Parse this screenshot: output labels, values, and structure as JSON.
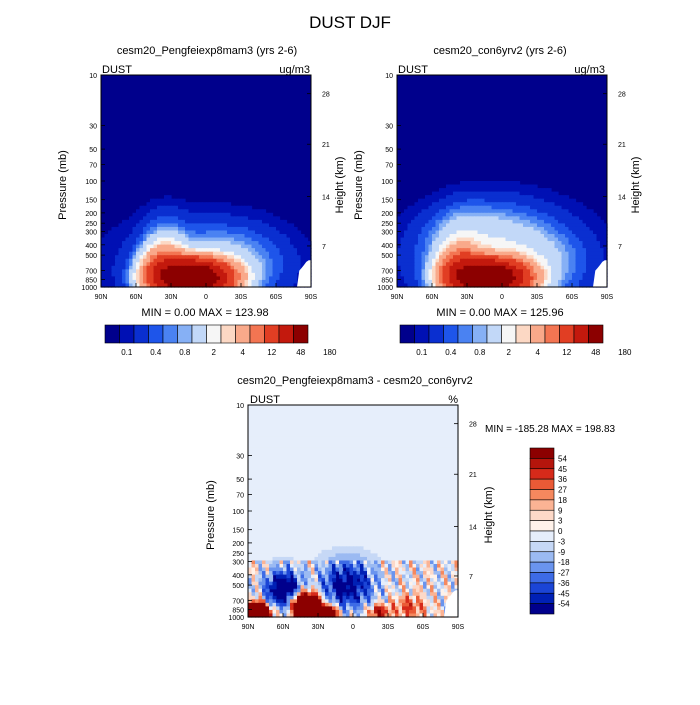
{
  "page": {
    "title": "DUST DJF"
  },
  "panels": [
    {
      "title": "cesm20_Pengfeiexp8mam3 (yrs 2-6)",
      "left_label": "DUST",
      "right_label": "ug/m3",
      "stats": "MIN =   0.00  MAX = 123.98",
      "ylabel": "Pressure (mb)",
      "y2label": "Height (km)"
    },
    {
      "title": "cesm20_con6yrv2 (yrs 2-6)",
      "left_label": "DUST",
      "right_label": "ug/m3",
      "stats": "MIN =   0.00  MAX = 125.96",
      "ylabel": "Pressure (mb)",
      "y2label": "Height (km)"
    },
    {
      "title": "cesm20_Pengfeiexp8mam3 - cesm20_con6yrv2",
      "left_label": "DUST",
      "right_label": "%",
      "stats": "MIN = -185.28  MAX = 198.83",
      "ylabel": "Pressure (mb)",
      "y2label": "Height (km)"
    }
  ],
  "chart_data": [
    {
      "type": "heatmap",
      "panel": 1,
      "x_ticks": [
        "90N",
        "60N",
        "30N",
        "0",
        "30S",
        "60S",
        "90S"
      ],
      "x_range": [
        90,
        -90
      ],
      "y_ticks": [
        "10",
        "30",
        "50",
        "70",
        "100",
        "150",
        "200",
        "250",
        "300",
        "400",
        "500",
        "700",
        "850",
        "1000"
      ],
      "y_range": [
        10,
        1000
      ],
      "y_scale": "log",
      "y2_ticks": [
        "28",
        "21",
        "14",
        "7"
      ],
      "levels": [
        "0.1",
        "0.4",
        "0.8",
        "2",
        "4",
        "12",
        "48",
        "180"
      ],
      "min": 0.0,
      "max": 123.98,
      "features": [
        {
          "lat": 13,
          "p": 800,
          "value": 124
        },
        {
          "lat": 35,
          "p": 550,
          "value": 1.5
        }
      ]
    },
    {
      "type": "heatmap",
      "panel": 2,
      "x_ticks": [
        "90N",
        "60N",
        "30N",
        "0",
        "30S",
        "60S",
        "90S"
      ],
      "x_range": [
        90,
        -90
      ],
      "y_ticks": [
        "10",
        "30",
        "50",
        "70",
        "100",
        "150",
        "200",
        "250",
        "300",
        "400",
        "500",
        "700",
        "850",
        "1000"
      ],
      "y_range": [
        10,
        1000
      ],
      "y_scale": "log",
      "y2_ticks": [
        "28",
        "21",
        "14",
        "7"
      ],
      "levels": [
        "0.1",
        "0.4",
        "0.8",
        "2",
        "4",
        "12",
        "48",
        "180"
      ],
      "min": 0.0,
      "max": 125.96,
      "features": [
        {
          "lat": 13,
          "p": 800,
          "value": 126
        },
        {
          "lat": 20,
          "p": 350,
          "value": 1.0
        }
      ]
    },
    {
      "type": "heatmap",
      "panel": 3,
      "x_ticks": [
        "90N",
        "60N",
        "30N",
        "0",
        "30S",
        "60S",
        "90S"
      ],
      "x_range": [
        90,
        -90
      ],
      "y_ticks": [
        "10",
        "30",
        "50",
        "70",
        "100",
        "150",
        "200",
        "250",
        "300",
        "400",
        "500",
        "700",
        "850",
        "1000"
      ],
      "y_range": [
        10,
        1000
      ],
      "y_scale": "log",
      "y2_ticks": [
        "28",
        "21",
        "14",
        "7"
      ],
      "levels": [
        "54",
        "45",
        "36",
        "27",
        "18",
        "9",
        "3",
        "0",
        "-3",
        "-9",
        "-18",
        "-27",
        "-36",
        "-45",
        "-54"
      ],
      "min": -185.28,
      "max": 198.83,
      "features": [
        {
          "lat": 85,
          "p": 900,
          "value": 198
        },
        {
          "lat": 40,
          "p": 750,
          "value": 150
        },
        {
          "lat": -20,
          "p": 900,
          "value": 30
        }
      ]
    }
  ],
  "colors": {
    "abs_scale": [
      "#00008c",
      "#0010b4",
      "#0a2fd0",
      "#1e55ea",
      "#4a82f2",
      "#86b0f5",
      "#c2d8f8",
      "#f6f6f6",
      "#fcd8c4",
      "#f9a98a",
      "#f37552",
      "#e13e23",
      "#c3190d",
      "#8c0000"
    ],
    "diff_scale": [
      "#8c0000",
      "#b5150c",
      "#d62a1a",
      "#ea5a36",
      "#f5885e",
      "#fbb394",
      "#fdd9c8",
      "#fff2ea",
      "#e6eefb",
      "#c6d8f6",
      "#9bbaf2",
      "#6a94ee",
      "#3d6be6",
      "#1b45d6",
      "#0020b5",
      "#00008c"
    ]
  }
}
